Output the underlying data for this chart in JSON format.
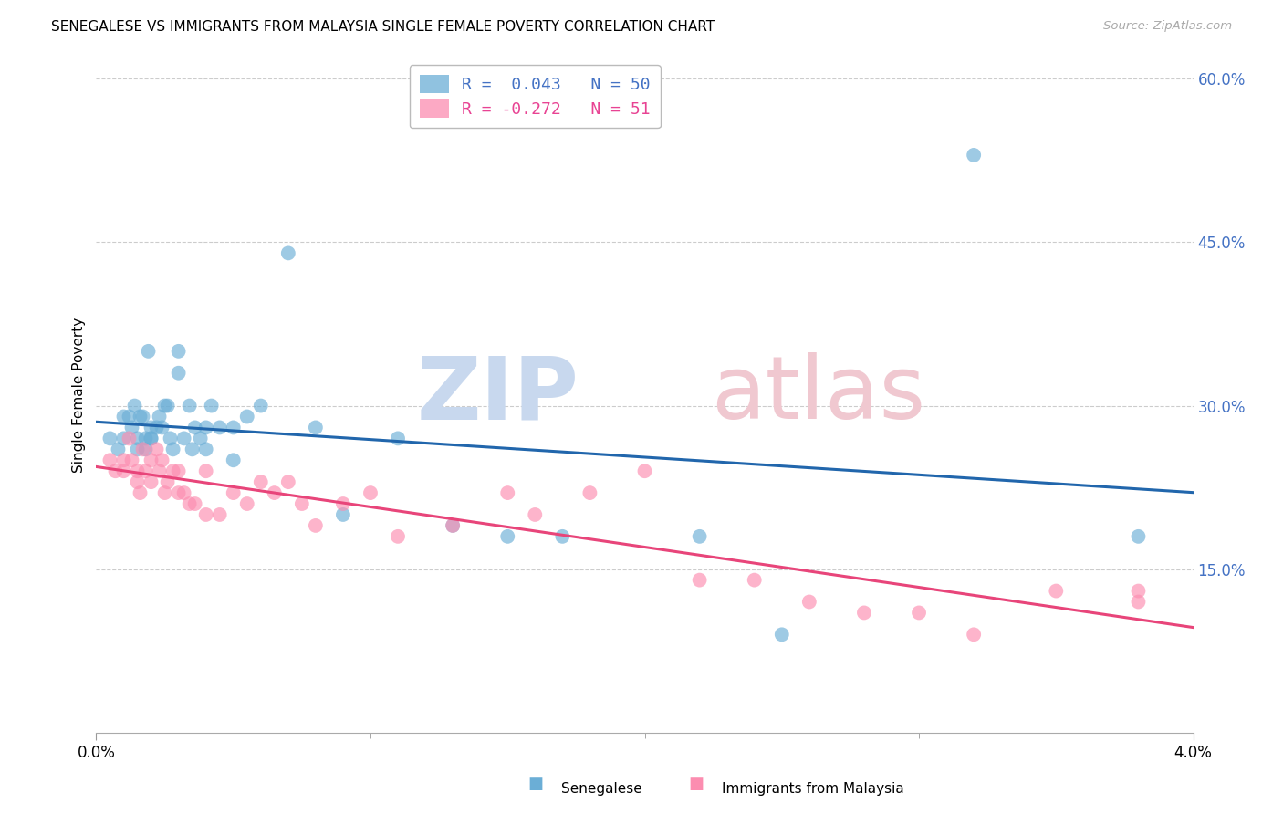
{
  "title": "SENEGALESE VS IMMIGRANTS FROM MALAYSIA SINGLE FEMALE POVERTY CORRELATION CHART",
  "source": "Source: ZipAtlas.com",
  "ylabel": "Single Female Poverty",
  "senegalese_color": "#6baed6",
  "malaysia_color": "#fc8db0",
  "blue_line_color": "#2166ac",
  "pink_line_color": "#e8457a",
  "senegalese_x": [
    0.0005,
    0.0008,
    0.001,
    0.001,
    0.0012,
    0.0013,
    0.0014,
    0.0015,
    0.0015,
    0.0016,
    0.0017,
    0.0018,
    0.0018,
    0.0019,
    0.002,
    0.002,
    0.002,
    0.0022,
    0.0023,
    0.0024,
    0.0025,
    0.0026,
    0.0027,
    0.0028,
    0.003,
    0.003,
    0.0032,
    0.0034,
    0.0035,
    0.0036,
    0.0038,
    0.004,
    0.004,
    0.0042,
    0.0045,
    0.005,
    0.005,
    0.0055,
    0.006,
    0.007,
    0.008,
    0.009,
    0.011,
    0.013,
    0.015,
    0.017,
    0.022,
    0.025,
    0.032,
    0.038
  ],
  "senegalese_y": [
    0.27,
    0.26,
    0.29,
    0.27,
    0.29,
    0.28,
    0.3,
    0.27,
    0.26,
    0.29,
    0.29,
    0.27,
    0.26,
    0.35,
    0.27,
    0.28,
    0.27,
    0.28,
    0.29,
    0.28,
    0.3,
    0.3,
    0.27,
    0.26,
    0.33,
    0.35,
    0.27,
    0.3,
    0.26,
    0.28,
    0.27,
    0.28,
    0.26,
    0.3,
    0.28,
    0.28,
    0.25,
    0.29,
    0.3,
    0.44,
    0.28,
    0.2,
    0.27,
    0.19,
    0.18,
    0.18,
    0.18,
    0.09,
    0.53,
    0.18
  ],
  "malaysia_x": [
    0.0005,
    0.0007,
    0.001,
    0.001,
    0.0012,
    0.0013,
    0.0015,
    0.0015,
    0.0016,
    0.0017,
    0.0018,
    0.002,
    0.002,
    0.0022,
    0.0023,
    0.0024,
    0.0025,
    0.0026,
    0.0028,
    0.003,
    0.003,
    0.0032,
    0.0034,
    0.0036,
    0.004,
    0.004,
    0.0045,
    0.005,
    0.0055,
    0.006,
    0.0065,
    0.007,
    0.0075,
    0.008,
    0.009,
    0.01,
    0.011,
    0.013,
    0.015,
    0.016,
    0.018,
    0.02,
    0.022,
    0.024,
    0.026,
    0.028,
    0.03,
    0.032,
    0.035,
    0.038,
    0.038
  ],
  "malaysia_y": [
    0.25,
    0.24,
    0.25,
    0.24,
    0.27,
    0.25,
    0.23,
    0.24,
    0.22,
    0.26,
    0.24,
    0.25,
    0.23,
    0.26,
    0.24,
    0.25,
    0.22,
    0.23,
    0.24,
    0.24,
    0.22,
    0.22,
    0.21,
    0.21,
    0.24,
    0.2,
    0.2,
    0.22,
    0.21,
    0.23,
    0.22,
    0.23,
    0.21,
    0.19,
    0.21,
    0.22,
    0.18,
    0.19,
    0.22,
    0.2,
    0.22,
    0.24,
    0.14,
    0.14,
    0.12,
    0.11,
    0.11,
    0.09,
    0.13,
    0.12,
    0.13
  ],
  "xlim": [
    0.0,
    0.04
  ],
  "ylim": [
    0.0,
    0.62
  ],
  "xtick_positions": [
    0.0,
    0.04
  ],
  "xtick_labels": [
    "0.0%",
    "4.0%"
  ],
  "right_ytick_positions": [
    0.15,
    0.3,
    0.45,
    0.6
  ],
  "right_ytick_labels": [
    "15.0%",
    "30.0%",
    "45.0%",
    "60.0%"
  ],
  "legend_line1": "R =  0.043   N = 50",
  "legend_line2": "R = -0.272   N = 51",
  "legend_text_color1": "#4472c4",
  "legend_text_color2": "#e84393",
  "bottom_label1": "Senegalese",
  "bottom_label2": "Immigrants from Malaysia"
}
